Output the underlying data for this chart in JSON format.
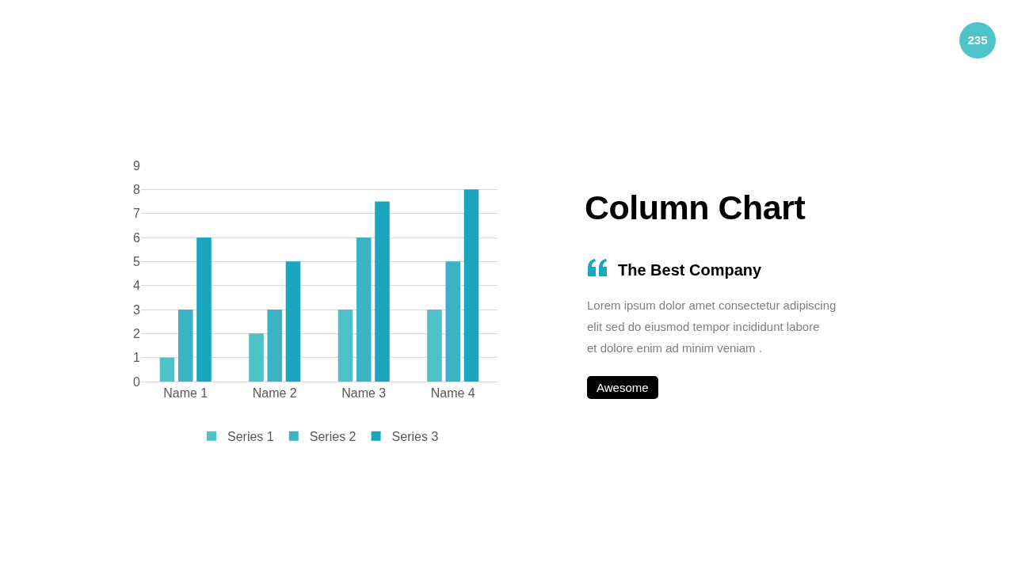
{
  "chart_data": {
    "type": "bar",
    "title": "Column Chart",
    "subtitle": "The Best Company",
    "annotations": [
      "Lorem ipsum dolor amet consectetur adipiscing\nelit sed do eiusmod tempor incididunt labore\net dolore enim ad minim veniam .",
      "Awesome",
      "235"
    ],
    "categories": [
      "Name 1",
      "Name 2",
      "Name 3",
      "Name 4"
    ],
    "series": [
      {
        "name": "Series 1",
        "color": "#4fc2c8",
        "values": [
          1,
          2,
          3,
          3
        ]
      },
      {
        "name": "Series 2",
        "color": "#3bb3c3",
        "values": [
          3,
          3,
          6,
          5
        ]
      },
      {
        "name": "Series 3",
        "color": "#1aa6bf",
        "values": [
          6,
          5,
          7.5,
          8
        ]
      }
    ],
    "ylim": [
      0,
      9
    ],
    "yticks": [
      0,
      1,
      2,
      3,
      4,
      5,
      6,
      7,
      8,
      9
    ],
    "grid": "y",
    "legend": "bottom"
  }
}
